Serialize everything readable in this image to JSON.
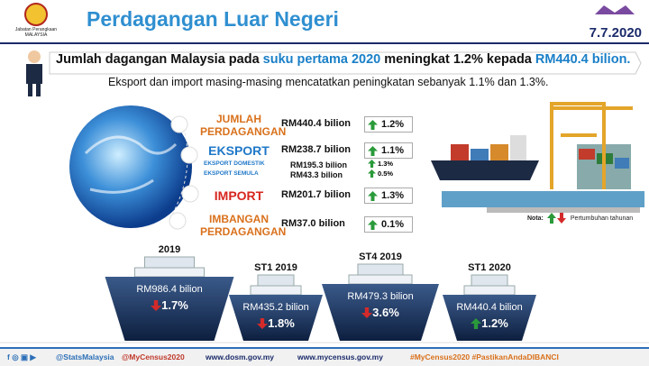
{
  "header": {
    "org": "Jabatan Perangkaan MALAYSIA",
    "title": "Perdagangan Luar Negeri",
    "date": "7.7.2020"
  },
  "headline": {
    "parts": [
      "Jumlah dagangan Malaysia pada ",
      "suku pertama 2020",
      " meningkat 1.2% kepada ",
      "RM440.4 bilion."
    ]
  },
  "subheadline": "Eksport dan import masing-masing mencatatkan peningkatan sebanyak 1.1% dan 1.3%.",
  "rows": [
    {
      "label": "JUMLAH PERDAGANGAN",
      "value": "RM440.4 bilion",
      "growth": "1.2%",
      "direction": "up",
      "color": "#d9711c"
    },
    {
      "label": "EKSPORT",
      "value": "RM238.7 bilion",
      "growth": "1.1%",
      "direction": "up",
      "color": "#1f78c8",
      "sub": [
        {
          "label": "EKSPORT DOMESTIK",
          "value": "RM195.3 bilion",
          "growth": "1.3%",
          "direction": "up"
        },
        {
          "label": "EKSPORT SEMULA",
          "value": "RM43.3 bilion",
          "growth": "0.5%",
          "direction": "up"
        }
      ]
    },
    {
      "label": "IMPORT",
      "value": "RM201.7 bilion",
      "growth": "1.3%",
      "direction": "up",
      "color": "#d7261e"
    },
    {
      "label": "IMBANGAN PERDAGANGAN",
      "value": "RM37.0 bilion",
      "growth": "0.1%",
      "direction": "up",
      "color": "#d9711c"
    }
  ],
  "note": {
    "label": "Nota:",
    "text": "Pertumbuhan tahunan"
  },
  "ships": [
    {
      "period": "2019",
      "value": "RM986.4 bilion",
      "growth": "1.7%",
      "direction": "down"
    },
    {
      "period": "ST1 2019",
      "value": "RM435.2 bilion",
      "growth": "1.8%",
      "direction": "down"
    },
    {
      "period": "ST4 2019",
      "value": "RM479.3 bilion",
      "growth": "3.6%",
      "direction": "down"
    },
    {
      "period": "ST1 2020",
      "value": "RM440.4 bilion",
      "growth": "1.2%",
      "direction": "up"
    }
  ],
  "footer": [
    "@StatsMalaysia",
    "@MyCensus2020",
    "www.dosm.gov.my",
    "www.mycensus.gov.my",
    "#MyCensus2020 #PastikanAndaDIBANCI"
  ]
}
